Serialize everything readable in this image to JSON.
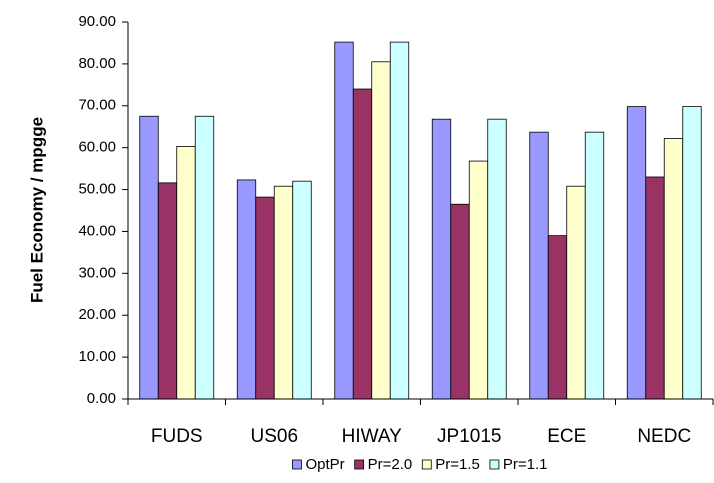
{
  "chart_data": {
    "type": "bar",
    "y_label": "Fuel Economy / mpgge",
    "categories": [
      "FUDS",
      "US06",
      "HIWAY",
      "JP1015",
      "ECE",
      "NEDC"
    ],
    "series": [
      {
        "name": "OptPr",
        "color": "#9999ff",
        "values": [
          67.5,
          52.3,
          85.2,
          66.8,
          63.7,
          69.8
        ]
      },
      {
        "name": "Pr=2.0",
        "color": "#993366",
        "values": [
          51.6,
          48.2,
          74.0,
          46.5,
          39.0,
          53.0
        ]
      },
      {
        "name": "Pr=1.5",
        "color": "#ffffcc",
        "values": [
          60.3,
          50.8,
          80.5,
          56.8,
          50.8,
          62.2
        ]
      },
      {
        "name": "Pr=1.1",
        "color": "#ccffff",
        "values": [
          67.5,
          52.0,
          85.2,
          66.8,
          63.7,
          69.8
        ]
      }
    ],
    "ylim": [
      0,
      90
    ],
    "yticks": [
      {
        "value": 0,
        "label": "0.00"
      },
      {
        "value": 10,
        "label": "10.00"
      },
      {
        "value": 20,
        "label": "20.00"
      },
      {
        "value": 30,
        "label": "30.00"
      },
      {
        "value": 40,
        "label": "40.00"
      },
      {
        "value": 50,
        "label": "50.00"
      },
      {
        "value": 60,
        "label": "60.00"
      },
      {
        "value": 70,
        "label": "70.00"
      },
      {
        "value": 80,
        "label": "80.00"
      },
      {
        "value": 90,
        "label": "90.00"
      }
    ],
    "grid": false,
    "legend": "bottom"
  }
}
